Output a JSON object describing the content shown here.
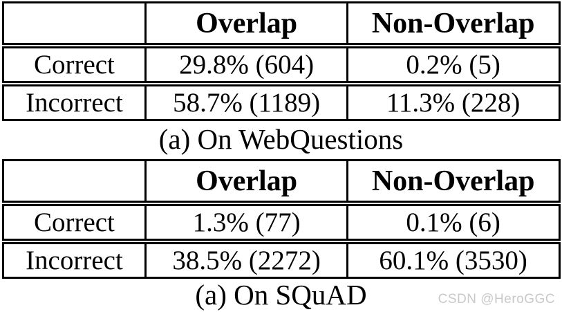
{
  "page": {
    "background": "#ffffff",
    "text_color": "#000000",
    "border_color": "#000000"
  },
  "tables": [
    {
      "caption": "(a) On WebQuestions",
      "headers": {
        "corner": "",
        "overlap": "Overlap",
        "non_overlap": "Non-Overlap"
      },
      "rows": [
        {
          "label": "Correct",
          "overlap": "29.8% (604)",
          "non_overlap": "0.2% (5)"
        },
        {
          "label": "Incorrect",
          "overlap": "58.7% (1189)",
          "non_overlap": "11.3% (228)"
        }
      ]
    },
    {
      "caption": "(a) On SQuAD",
      "headers": {
        "corner": "",
        "overlap": "Overlap",
        "non_overlap": "Non-Overlap"
      },
      "rows": [
        {
          "label": "Correct",
          "overlap": "1.3% (77)",
          "non_overlap": "0.1% (6)"
        },
        {
          "label": "Incorrect",
          "overlap": "38.5% (2272)",
          "non_overlap": "60.1% (3530)"
        }
      ]
    }
  ],
  "watermark": {
    "text": "CSDN @HeroGGC",
    "color": "#c9c9c9"
  }
}
